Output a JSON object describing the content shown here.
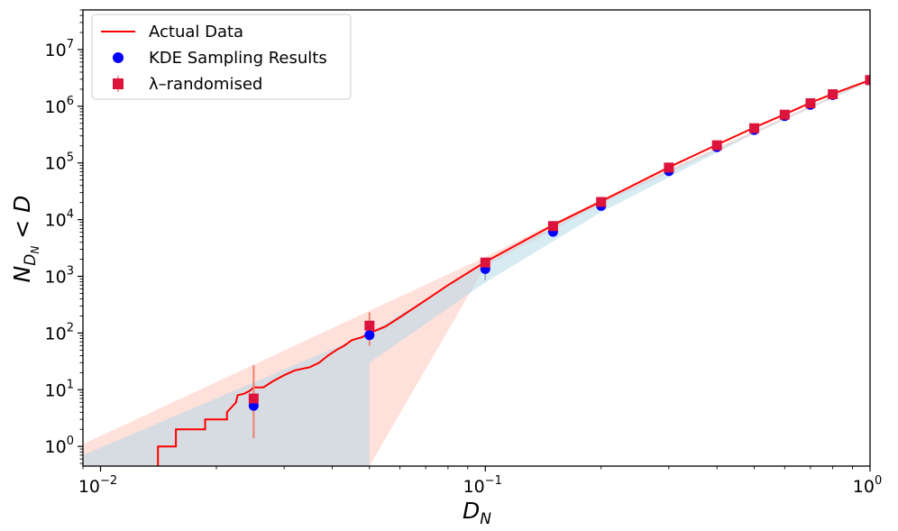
{
  "chart_data": {
    "type": "line",
    "xscale": "log",
    "yscale": "log",
    "xlim": [
      0.009,
      1.0
    ],
    "ylim": [
      0.45,
      50000000
    ],
    "x_ticks": [
      {
        "base": "10",
        "exp": "−2",
        "value": 0.01
      },
      {
        "base": "10",
        "exp": "−1",
        "value": 0.1
      },
      {
        "base": "10",
        "exp": "0",
        "value": 1
      }
    ],
    "y_ticks": [
      {
        "base": "10",
        "exp": "0",
        "value": 1
      },
      {
        "base": "10",
        "exp": "1",
        "value": 10
      },
      {
        "base": "10",
        "exp": "2",
        "value": 100
      },
      {
        "base": "10",
        "exp": "3",
        "value": 1000
      },
      {
        "base": "10",
        "exp": "4",
        "value": 10000
      },
      {
        "base": "10",
        "exp": "5",
        "value": 100000
      },
      {
        "base": "10",
        "exp": "6",
        "value": 1000000
      },
      {
        "base": "10",
        "exp": "7",
        "value": 10000000
      }
    ],
    "xlabel": {
      "main": "D",
      "sub": "N"
    },
    "ylabel": {
      "main": "N",
      "sub": "D",
      "subsub": "N",
      "rest": " < D"
    },
    "legend": {
      "placement": "top-left",
      "entries": [
        "Actual Data",
        "KDE Sampling Results",
        "λ–randomised"
      ]
    },
    "colors": {
      "actual": "#ff0000",
      "kde": "#0000ff",
      "lambda": "#dc143c",
      "lambda_band": "#ffc8c0",
      "kde_band": "#add8e6"
    },
    "series": [
      {
        "name": "Actual Data",
        "kind": "step-line",
        "points": [
          [
            0.0141,
            0.3
          ],
          [
            0.0141,
            1
          ],
          [
            0.0157,
            1
          ],
          [
            0.0157,
            2
          ],
          [
            0.0187,
            2
          ],
          [
            0.0187,
            3
          ],
          [
            0.0213,
            3
          ],
          [
            0.0213,
            4
          ],
          [
            0.0225,
            6
          ],
          [
            0.0227,
            8
          ],
          [
            0.0236,
            8.5
          ],
          [
            0.0244,
            9.5
          ],
          [
            0.025,
            11
          ],
          [
            0.0265,
            11
          ],
          [
            0.028,
            14
          ],
          [
            0.03,
            18
          ],
          [
            0.032,
            22
          ],
          [
            0.035,
            25
          ],
          [
            0.037,
            30
          ],
          [
            0.039,
            40
          ],
          [
            0.041,
            50
          ],
          [
            0.043,
            60
          ],
          [
            0.045,
            75
          ],
          [
            0.048,
            85
          ],
          [
            0.05,
            100
          ],
          [
            0.055,
            130
          ],
          [
            0.06,
            190
          ],
          [
            0.07,
            380
          ],
          [
            0.08,
            700
          ],
          [
            0.1,
            1800
          ],
          [
            0.15,
            8000
          ],
          [
            0.2,
            21000
          ],
          [
            0.3,
            84000
          ],
          [
            0.4,
            210000
          ],
          [
            0.5,
            420000
          ],
          [
            0.6,
            720000
          ],
          [
            0.7,
            1150000
          ],
          [
            0.8,
            1650000
          ],
          [
            1.0,
            2900000
          ]
        ]
      },
      {
        "name": "KDE Sampling Results",
        "kind": "points",
        "points": [
          [
            0.025,
            5.2
          ],
          [
            0.05,
            92
          ],
          [
            0.1,
            1350
          ],
          [
            0.15,
            6100
          ],
          [
            0.2,
            17500
          ],
          [
            0.3,
            72000
          ],
          [
            0.4,
            190000
          ],
          [
            0.5,
            380000
          ],
          [
            0.6,
            670000
          ],
          [
            0.7,
            1060000
          ],
          [
            0.8,
            1580000
          ],
          [
            1.0,
            2870000
          ]
        ],
        "errors": [
          [
            0.1,
            850,
            1800
          ]
        ]
      },
      {
        "name": "λ–randomised",
        "kind": "points",
        "points": [
          [
            0.025,
            7
          ],
          [
            0.05,
            135
          ],
          [
            0.1,
            1750
          ],
          [
            0.15,
            7700
          ],
          [
            0.2,
            20500
          ],
          [
            0.3,
            83000
          ],
          [
            0.4,
            205000
          ],
          [
            0.5,
            410000
          ],
          [
            0.6,
            710000
          ],
          [
            0.7,
            1130000
          ],
          [
            0.8,
            1630000
          ],
          [
            1.0,
            2900000
          ]
        ],
        "errors": [
          [
            0.025,
            1.4,
            27
          ],
          [
            0.05,
            60,
            230
          ]
        ]
      }
    ],
    "bands": [
      {
        "name": "λ–randomised",
        "upper": [
          [
            0.009,
            1.1
          ],
          [
            0.1,
            2200
          ],
          [
            0.2,
            23000
          ],
          [
            1.0,
            3000000
          ]
        ],
        "lower": [
          [
            1.0,
            2800000
          ],
          [
            0.2,
            19000
          ],
          [
            0.1,
            1500
          ],
          [
            0.05,
            0.45
          ],
          [
            0.009,
            0.45
          ]
        ]
      },
      {
        "name": "KDE Sampling Results",
        "upper": [
          [
            0.009,
            0.7
          ],
          [
            0.05,
            100
          ],
          [
            0.1,
            1700
          ],
          [
            0.2,
            21000
          ],
          [
            1.0,
            2950000
          ]
        ],
        "lower": [
          [
            1.0,
            2750000
          ],
          [
            0.5,
            330000
          ],
          [
            0.3,
            56000
          ],
          [
            0.2,
            13500
          ],
          [
            0.1,
            780
          ],
          [
            0.05,
            30
          ],
          [
            0.05,
            0.45
          ],
          [
            0.009,
            0.45
          ]
        ]
      }
    ]
  }
}
